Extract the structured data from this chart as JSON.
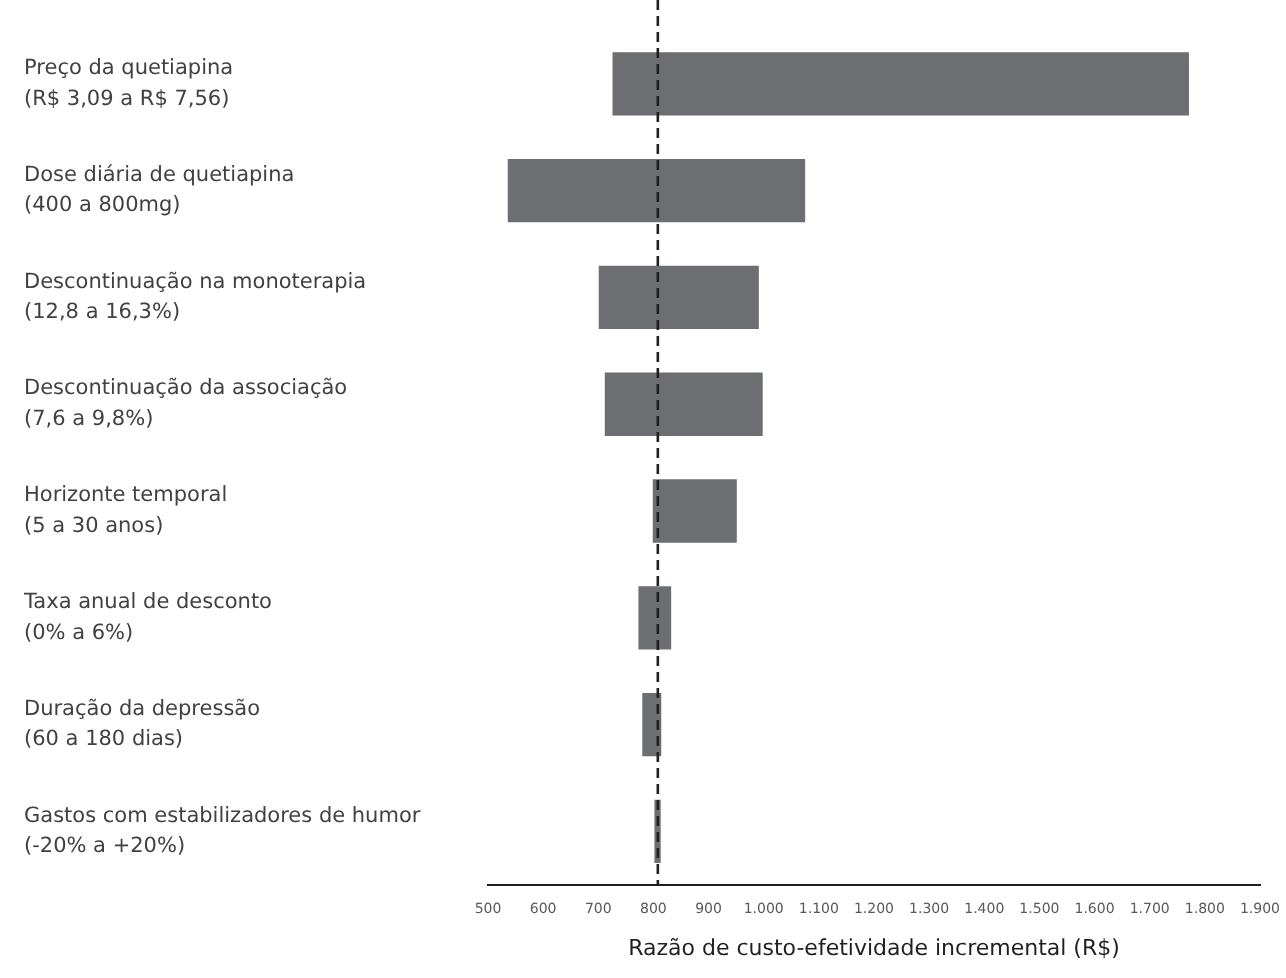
{
  "chart_data": {
    "type": "bar",
    "orientation": "horizontal",
    "xlabel": "Razão de custo-efetividade incremental (R$)",
    "categories": [
      "Preço da quetiapina\n(R$ 3,09 a R$ 7,56)",
      "Dose diária de quetiapina\n(400 a 800mg)",
      "Descontinuação na monoterapia\n(12,8 a 16,3%)",
      "Descontinuação da associação\n(7,6 a 9,8%)",
      "Horizonte temporal\n(5 a 30 anos)",
      "Taxa anual de desconto\n(0% a 6%)",
      "Duração da depressão\n(60 a 180 dias)",
      "Gastos com estabilizadores de humor\n(-20% a +20%)"
    ],
    "base": [
      727,
      537,
      702,
      713,
      800,
      774,
      781,
      803
    ],
    "values": [
      1043,
      537,
      288,
      284,
      150,
      57,
      32,
      9
    ],
    "color": "#6d6e71",
    "xlim": [
      500,
      1900
    ],
    "xticks": [
      500,
      600,
      700,
      800,
      900,
      {
        "value": 1000,
        "label": "1.000"
      },
      {
        "value": 1100,
        "label": "1.100"
      },
      {
        "value": 1200,
        "label": "1.200"
      },
      {
        "value": 1300,
        "label": "1.300"
      },
      {
        "value": 1400,
        "label": "1.400"
      },
      {
        "value": 1500,
        "label": "1.500"
      },
      {
        "value": 1600,
        "label": "1.600"
      },
      {
        "value": 1700,
        "label": "1.700"
      },
      {
        "value": 1800,
        "label": "1.800"
      },
      {
        "value": 1900,
        "label": "1.900"
      }
    ],
    "ref_lines": [
      {
        "axis": "x",
        "value": 808,
        "color": "#231f20",
        "line_style": "dashed"
      }
    ]
  }
}
